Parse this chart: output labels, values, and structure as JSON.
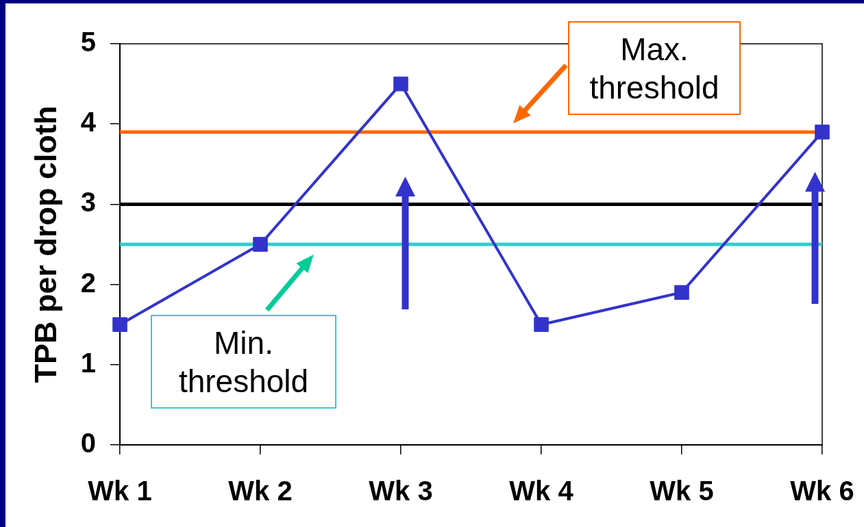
{
  "chart_data": {
    "type": "line",
    "ylabel": "TPB per drop cloth",
    "categories": [
      "Wk 1",
      "Wk 2",
      "Wk 3",
      "Wk 4",
      "Wk 5",
      "Wk 6"
    ],
    "series": [
      {
        "color": "#3333cc",
        "values": [
          1.5,
          2.5,
          4.5,
          1.5,
          1.9,
          3.9
        ]
      }
    ],
    "ylim": [
      0,
      5
    ],
    "yticks": [
      0,
      1,
      2,
      3,
      4,
      5
    ],
    "marker": "square",
    "line_style": "solid",
    "ref_lines": [
      {
        "axis": "y",
        "value": 3.9,
        "label": "Max. threshold",
        "color": "#ff6600"
      },
      {
        "axis": "y",
        "value": 3.0,
        "color": "#000000"
      },
      {
        "axis": "y",
        "value": 2.5,
        "label": "Min. threshold",
        "color": "#33cccc"
      }
    ]
  }
}
